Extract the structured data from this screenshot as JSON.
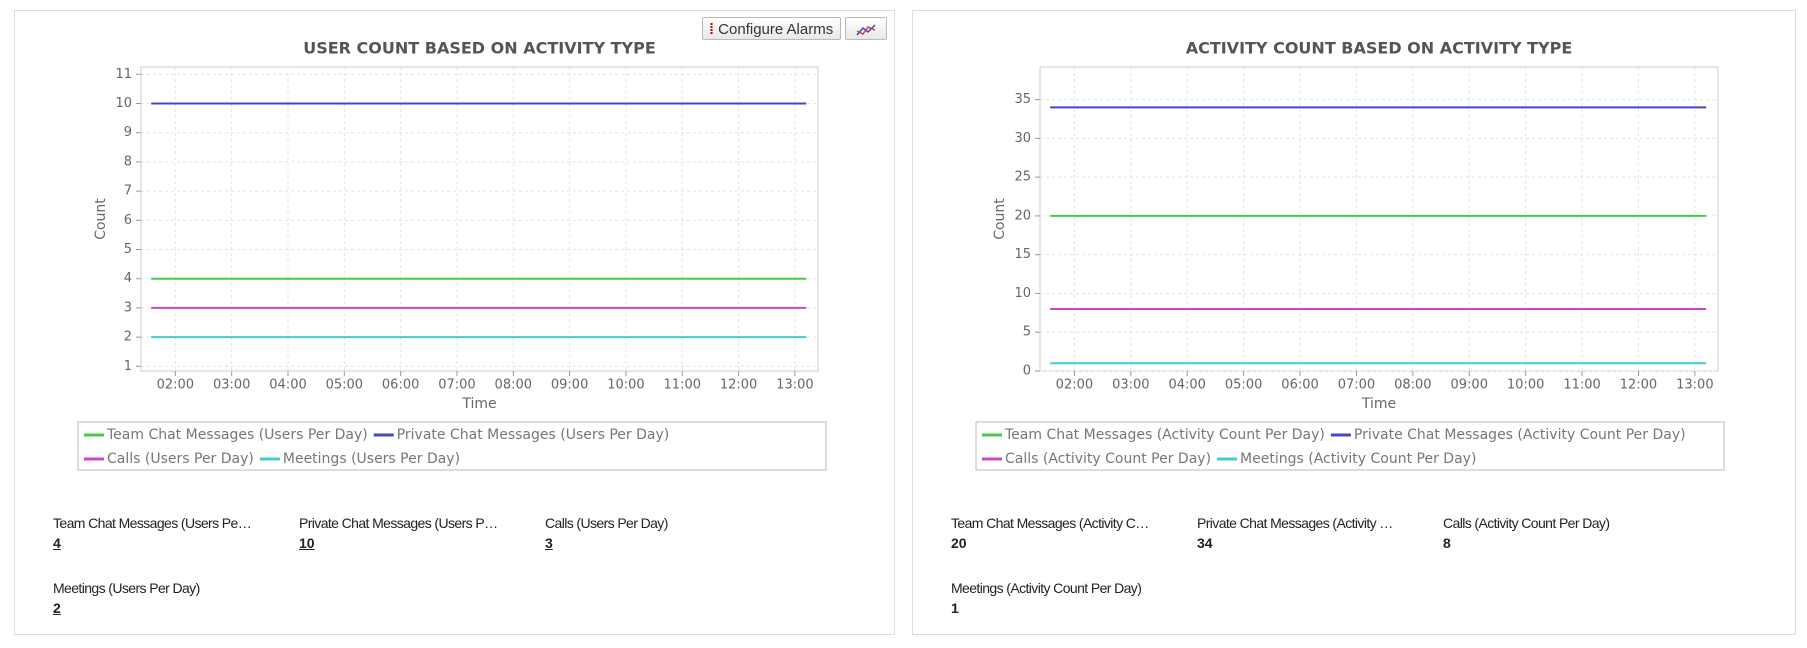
{
  "toolbar": {
    "configure_alarms": "Configure Alarms"
  },
  "chart_data": [
    {
      "type": "line",
      "title": "USER COUNT BASED ON ACTIVITY TYPE",
      "x_label": "Time",
      "y_label": "Count",
      "x": [
        1.57,
        2,
        3,
        4,
        5,
        6,
        7,
        8,
        9,
        10,
        11,
        12,
        13,
        13.2
      ],
      "xlim": [
        1.39,
        13.41
      ],
      "xticks": [
        {
          "value": 2,
          "label": "02:00"
        },
        {
          "value": 3,
          "label": "03:00"
        },
        {
          "value": 4,
          "label": "04:00"
        },
        {
          "value": 5,
          "label": "05:00"
        },
        {
          "value": 6,
          "label": "06:00"
        },
        {
          "value": 7,
          "label": "07:00"
        },
        {
          "value": 8,
          "label": "08:00"
        },
        {
          "value": 9,
          "label": "09:00"
        },
        {
          "value": 10,
          "label": "10:00"
        },
        {
          "value": 11,
          "label": "11:00"
        },
        {
          "value": 12,
          "label": "12:00"
        },
        {
          "value": 13,
          "label": "13:00"
        }
      ],
      "ylim": [
        0.84,
        11.25
      ],
      "yticks": [
        1,
        2,
        3,
        4,
        5,
        6,
        7,
        8,
        9,
        10,
        11
      ],
      "grid": true,
      "series": [
        {
          "name": "Team Chat Messages (Users Per Day)",
          "color": "#44cc44",
          "values": [
            4,
            4,
            4,
            4,
            4,
            4,
            4,
            4,
            4,
            4,
            4,
            4,
            4,
            4
          ]
        },
        {
          "name": "Private Chat Messages (Users Per Day)",
          "color": "#4444cc",
          "values": [
            10,
            10,
            10,
            10,
            10,
            10,
            10,
            10,
            10,
            10,
            10,
            10,
            10,
            10
          ]
        },
        {
          "name": "Calls (Users Per Day)",
          "color": "#cc44cc",
          "values": [
            3,
            3,
            3,
            3,
            3,
            3,
            3,
            3,
            3,
            3,
            3,
            3,
            3,
            3
          ]
        },
        {
          "name": "Meetings (Users Per Day)",
          "color": "#44cccc",
          "values": [
            2,
            2,
            2,
            2,
            2,
            2,
            2,
            2,
            2,
            2,
            2,
            2,
            2,
            2
          ]
        }
      ]
    },
    {
      "type": "line",
      "title": "ACTIVITY COUNT BASED ON ACTIVITY TYPE",
      "x_label": "Time",
      "y_label": "Count",
      "x": [
        1.57,
        2,
        3,
        4,
        5,
        6,
        7,
        8,
        9,
        10,
        11,
        12,
        13,
        13.2
      ],
      "xlim": [
        1.39,
        13.41
      ],
      "xticks": [
        {
          "value": 2,
          "label": "02:00"
        },
        {
          "value": 3,
          "label": "03:00"
        },
        {
          "value": 4,
          "label": "04:00"
        },
        {
          "value": 5,
          "label": "05:00"
        },
        {
          "value": 6,
          "label": "06:00"
        },
        {
          "value": 7,
          "label": "07:00"
        },
        {
          "value": 8,
          "label": "08:00"
        },
        {
          "value": 9,
          "label": "09:00"
        },
        {
          "value": 10,
          "label": "10:00"
        },
        {
          "value": 11,
          "label": "11:00"
        },
        {
          "value": 12,
          "label": "12:00"
        },
        {
          "value": 13,
          "label": "13:00"
        }
      ],
      "ylim": [
        0,
        39.2
      ],
      "yticks": [
        0,
        5,
        10,
        15,
        20,
        25,
        30,
        35
      ],
      "grid": true,
      "series": [
        {
          "name": "Team Chat Messages (Activity Count Per Day)",
          "color": "#44cc44",
          "values": [
            20,
            20,
            20,
            20,
            20,
            20,
            20,
            20,
            20,
            20,
            20,
            20,
            20,
            20
          ]
        },
        {
          "name": "Private Chat Messages (Activity Count Per Day)",
          "color": "#4444cc",
          "values": [
            34,
            34,
            34,
            34,
            34,
            34,
            34,
            34,
            34,
            34,
            34,
            34,
            34,
            34
          ]
        },
        {
          "name": "Calls (Activity Count Per Day)",
          "color": "#cc44cc",
          "values": [
            8,
            8,
            8,
            8,
            8,
            8,
            8,
            8,
            8,
            8,
            8,
            8,
            8,
            8
          ]
        },
        {
          "name": "Meetings (Activity Count Per Day)",
          "color": "#44cccc",
          "values": [
            1,
            1,
            1,
            1,
            1,
            1,
            1,
            1,
            1,
            1,
            1,
            1,
            1,
            1
          ]
        }
      ]
    }
  ],
  "summaries": [
    {
      "items": [
        {
          "label": "Team Chat Messages (Users Pe…",
          "value": 4
        },
        {
          "label": "Private Chat Messages (Users P…",
          "value": 10
        },
        {
          "label": "Calls (Users Per Day)",
          "value": 3
        },
        {
          "label": "Meetings (Users Per Day)",
          "value": 2
        }
      ]
    },
    {
      "items": [
        {
          "label": "Team Chat Messages (Activity C…",
          "value": 20
        },
        {
          "label": "Private Chat Messages (Activity …",
          "value": 34
        },
        {
          "label": "Calls (Activity Count Per Day)",
          "value": 8
        },
        {
          "label": "Meetings (Activity Count Per Day)",
          "value": 1
        }
      ]
    }
  ]
}
